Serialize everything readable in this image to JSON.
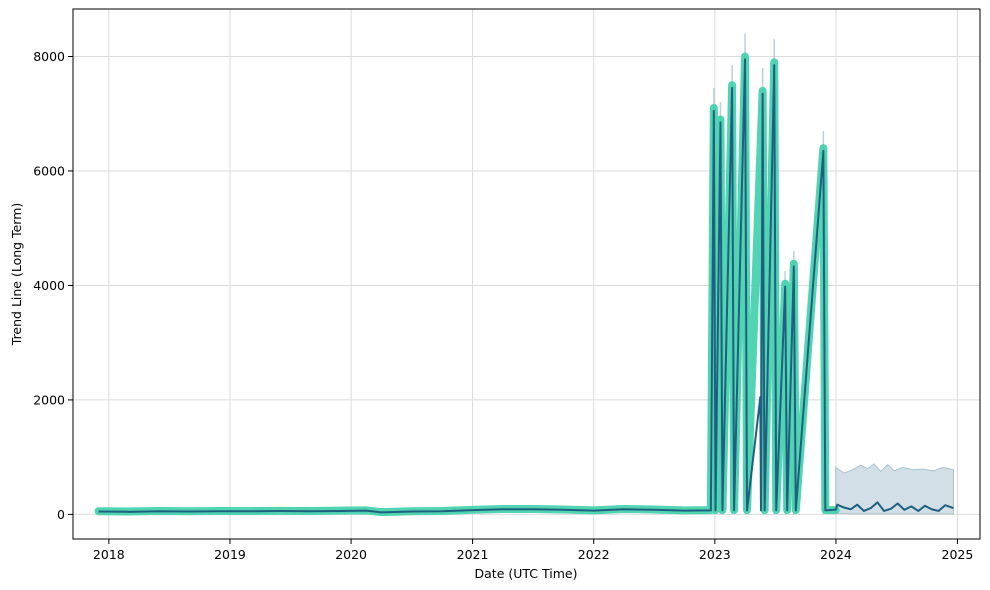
{
  "chart_data": {
    "type": "line",
    "title": "",
    "xlabel": "Date (UTC Time)",
    "ylabel": "Trend Line (Long Term)",
    "xlim": [
      "2017-09-15",
      "2025-03-10"
    ],
    "ylim": [
      -430,
      8830
    ],
    "x_ticks": [
      "2018",
      "2019",
      "2020",
      "2021",
      "2022",
      "2023",
      "2024",
      "2025"
    ],
    "y_ticks": [
      0,
      2000,
      4000,
      6000,
      8000
    ],
    "grid": true,
    "legend": "none",
    "colors": {
      "actual": "#3ecfaa",
      "fit": "#1f5f7f",
      "band": "#adc4d1",
      "grid": "#dcdcdc"
    },
    "series": [
      {
        "key": "actual",
        "style": "thick-line",
        "points": [
          [
            "2017-12-01",
            55
          ],
          [
            "2018-03-01",
            50
          ],
          [
            "2018-06-01",
            60
          ],
          [
            "2018-09-01",
            55
          ],
          [
            "2018-12-01",
            60
          ],
          [
            "2019-03-01",
            58
          ],
          [
            "2019-06-01",
            62
          ],
          [
            "2019-09-01",
            60
          ],
          [
            "2019-12-01",
            65
          ],
          [
            "2020-02-15",
            70
          ],
          [
            "2020-04-01",
            40
          ],
          [
            "2020-07-01",
            55
          ],
          [
            "2020-10-01",
            60
          ],
          [
            "2021-01-01",
            80
          ],
          [
            "2021-04-01",
            95
          ],
          [
            "2021-07-01",
            95
          ],
          [
            "2021-10-01",
            85
          ],
          [
            "2022-01-01",
            70
          ],
          [
            "2022-04-01",
            95
          ],
          [
            "2022-07-01",
            85
          ],
          [
            "2022-10-01",
            70
          ],
          [
            "2022-12-20",
            75
          ],
          [
            "2022-12-29",
            7100
          ],
          [
            "2023-01-03",
            75
          ],
          [
            "2023-01-18",
            6900
          ],
          [
            "2023-01-24",
            75
          ],
          [
            "2023-02-22",
            7500
          ],
          [
            "2023-02-28",
            75
          ],
          [
            "2023-04-02",
            8000
          ],
          [
            "2023-04-08",
            75
          ],
          [
            "2023-05-25",
            7400
          ],
          [
            "2023-05-31",
            75
          ],
          [
            "2023-06-29",
            7900
          ],
          [
            "2023-07-05",
            75
          ],
          [
            "2023-08-01",
            4030
          ],
          [
            "2023-08-07",
            75
          ],
          [
            "2023-08-27",
            4380
          ],
          [
            "2023-09-02",
            75
          ],
          [
            "2023-11-24",
            6400
          ],
          [
            "2023-11-30",
            75
          ],
          [
            "2023-12-31",
            75
          ]
        ]
      },
      {
        "key": "fit",
        "style": "line",
        "points": [
          [
            "2017-12-01",
            50
          ],
          [
            "2018-03-01",
            45
          ],
          [
            "2018-06-01",
            55
          ],
          [
            "2018-09-01",
            50
          ],
          [
            "2018-12-01",
            55
          ],
          [
            "2019-03-01",
            55
          ],
          [
            "2019-06-01",
            60
          ],
          [
            "2019-09-01",
            55
          ],
          [
            "2019-12-01",
            60
          ],
          [
            "2020-02-15",
            65
          ],
          [
            "2020-04-01",
            35
          ],
          [
            "2020-07-01",
            50
          ],
          [
            "2020-10-01",
            55
          ],
          [
            "2021-01-01",
            75
          ],
          [
            "2021-04-01",
            90
          ],
          [
            "2021-07-01",
            90
          ],
          [
            "2021-10-01",
            80
          ],
          [
            "2022-01-01",
            65
          ],
          [
            "2022-04-01",
            90
          ],
          [
            "2022-07-01",
            80
          ],
          [
            "2022-10-01",
            65
          ],
          [
            "2022-12-20",
            70
          ],
          [
            "2022-12-29",
            7050
          ],
          [
            "2023-01-03",
            70
          ],
          [
            "2023-01-18",
            6850
          ],
          [
            "2023-01-24",
            70
          ],
          [
            "2023-02-22",
            7450
          ],
          [
            "2023-02-28",
            70
          ],
          [
            "2023-04-02",
            7950
          ],
          [
            "2023-04-08",
            70
          ],
          [
            "2023-05-18",
            2050
          ],
          [
            "2023-05-20",
            70
          ],
          [
            "2023-05-25",
            7350
          ],
          [
            "2023-05-31",
            70
          ],
          [
            "2023-06-29",
            7850
          ],
          [
            "2023-07-05",
            70
          ],
          [
            "2023-08-01",
            3980
          ],
          [
            "2023-08-07",
            70
          ],
          [
            "2023-08-27",
            4330
          ],
          [
            "2023-09-02",
            70
          ],
          [
            "2023-11-24",
            6350
          ],
          [
            "2023-11-30",
            70
          ],
          [
            "2023-12-31",
            80
          ],
          [
            "2024-01-05",
            170
          ],
          [
            "2024-01-25",
            120
          ],
          [
            "2024-02-15",
            90
          ],
          [
            "2024-03-05",
            170
          ],
          [
            "2024-03-25",
            60
          ],
          [
            "2024-04-15",
            110
          ],
          [
            "2024-05-05",
            210
          ],
          [
            "2024-05-25",
            60
          ],
          [
            "2024-06-15",
            100
          ],
          [
            "2024-07-05",
            190
          ],
          [
            "2024-07-25",
            80
          ],
          [
            "2024-08-15",
            140
          ],
          [
            "2024-09-05",
            60
          ],
          [
            "2024-09-25",
            150
          ],
          [
            "2024-10-15",
            90
          ],
          [
            "2024-11-05",
            60
          ],
          [
            "2024-11-25",
            160
          ],
          [
            "2024-12-20",
            110
          ]
        ]
      }
    ],
    "uncertainty_band": [
      [
        "2023-12-31",
        20,
        820
      ],
      [
        "2024-01-25",
        15,
        720
      ],
      [
        "2024-02-20",
        10,
        780
      ],
      [
        "2024-03-15",
        10,
        860
      ],
      [
        "2024-04-05",
        10,
        800
      ],
      [
        "2024-04-25",
        10,
        880
      ],
      [
        "2024-05-15",
        10,
        750
      ],
      [
        "2024-06-05",
        10,
        870
      ],
      [
        "2024-06-25",
        10,
        760
      ],
      [
        "2024-07-20",
        10,
        820
      ],
      [
        "2024-08-20",
        10,
        780
      ],
      [
        "2024-09-20",
        10,
        790
      ],
      [
        "2024-10-20",
        10,
        760
      ],
      [
        "2024-11-20",
        10,
        820
      ],
      [
        "2024-12-20",
        10,
        780
      ]
    ],
    "spike_caps": [
      [
        "2022-12-29",
        7450
      ],
      [
        "2023-01-18",
        7200
      ],
      [
        "2023-02-22",
        7850
      ],
      [
        "2023-04-02",
        8400
      ],
      [
        "2023-05-25",
        7800
      ],
      [
        "2023-06-29",
        8300
      ],
      [
        "2023-08-01",
        4250
      ],
      [
        "2023-08-27",
        4600
      ],
      [
        "2023-11-24",
        6700
      ]
    ]
  }
}
